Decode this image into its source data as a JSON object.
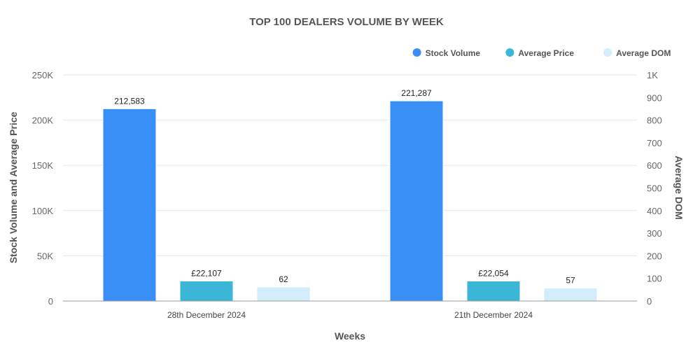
{
  "chart_data": {
    "type": "bar",
    "title": "TOP 100 DEALERS VOLUME BY WEEK",
    "xlabel": "Weeks",
    "ylabel": "Stock Volume and Average Price",
    "y2label": "Average DOM",
    "ylim": [
      0,
      250000
    ],
    "y2lim": [
      0,
      1000
    ],
    "y_ticks": [
      "0",
      "50K",
      "100K",
      "150K",
      "200K",
      "250K"
    ],
    "y2_ticks": [
      "0",
      "100",
      "200",
      "300",
      "400",
      "500",
      "600",
      "700",
      "800",
      "900",
      "1K"
    ],
    "categories": [
      "28th December 2024",
      "21th December 2024"
    ],
    "series": [
      {
        "name": "Stock Volume",
        "axis": "left",
        "color": "#3a8ff7",
        "values": [
          212583,
          221287
        ],
        "labels": [
          "212,583",
          "221,287"
        ]
      },
      {
        "name": "Average Price",
        "axis": "left",
        "color": "#3cb6d6",
        "values": [
          22107,
          22054
        ],
        "labels": [
          "£22,107",
          "£22,054"
        ]
      },
      {
        "name": "Average DOM",
        "axis": "right",
        "color": "#d2ecfb",
        "values": [
          62,
          57
        ],
        "labels": [
          "62",
          "57"
        ]
      }
    ],
    "legend": "top-right",
    "grid": true
  }
}
